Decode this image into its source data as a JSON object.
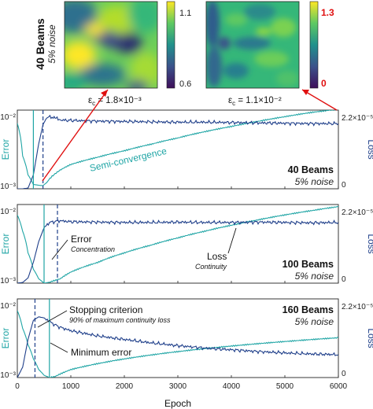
{
  "chart_data": [
    {
      "type": "line",
      "panel": "top",
      "title": "40 Beams",
      "subtitle": "5% noise",
      "ylabel_left": "Error",
      "ylabel_right": "Loss",
      "yticks_left": [
        "10⁻²",
        "10⁻³"
      ],
      "yticks_right": [
        "2.2×10⁻⁵",
        "0"
      ],
      "xlim": [
        0,
        6000
      ],
      "annotations": [
        "Semi-convergence"
      ],
      "series": [
        {
          "name": "Error",
          "color": "#1fa5a5",
          "x": [
            0,
            100,
            200,
            300,
            400,
            480,
            550,
            650,
            800,
            1000,
            1500,
            2000,
            2500,
            3000,
            3500,
            4000,
            4500,
            5000,
            5500,
            6000
          ],
          "y": [
            0.008,
            0.002,
            0.0009,
            0.0006,
            0.00058,
            0.00057,
            0.00065,
            0.00085,
            0.0011,
            0.0014,
            0.0019,
            0.0025,
            0.0033,
            0.0043,
            0.0056,
            0.007,
            0.0087,
            0.0106,
            0.0127,
            0.0145
          ]
        },
        {
          "name": "Loss",
          "color": "#1f3f8a",
          "x": [
            0,
            100,
            200,
            300,
            400,
            480,
            550,
            650,
            800,
            1000,
            1500,
            2000,
            2500,
            3000,
            3500,
            4000,
            4500,
            5000,
            5500,
            6000
          ],
          "y": [
            0.0,
            0.0,
            2e-07,
            4e-06,
            1.3e-05,
            1.85e-05,
            2.05e-05,
            2.08e-05,
            1.98e-05,
            1.97e-05,
            1.95e-05,
            1.94e-05,
            1.93e-05,
            1.92e-05,
            1.92e-05,
            1.91e-05,
            1.9e-05,
            1.89e-05,
            1.88e-05,
            1.88e-05
          ]
        }
      ],
      "vlines": [
        {
          "x": 300,
          "style": "solid"
        },
        {
          "x": 480,
          "style": "dashed"
        }
      ]
    },
    {
      "type": "line",
      "panel": "middle",
      "title": "100 Beams",
      "subtitle": "5% noise",
      "ylabel_left": "Error",
      "ylabel_right": "Loss",
      "yticks_left": [
        "10⁻²",
        "10⁻³"
      ],
      "yticks_right": [
        "2.2×10⁻⁵",
        "0"
      ],
      "xlim": [
        0,
        6000
      ],
      "annotations": [
        {
          "label": "Error",
          "sub": "Concentration"
        },
        {
          "label": "Loss",
          "sub": "Continuity"
        }
      ],
      "series": [
        {
          "name": "Error",
          "color": "#1fa5a5",
          "x": [
            0,
            100,
            200,
            300,
            400,
            500,
            600,
            800,
            1000,
            1500,
            2000,
            2500,
            3000,
            3500,
            4000,
            4500,
            5000,
            5500,
            6000
          ],
          "y": [
            0.009,
            0.0045,
            0.0018,
            0.0009,
            0.0006,
            0.0005,
            0.00052,
            0.0006,
            0.0008,
            0.0012,
            0.0018,
            0.0025,
            0.0034,
            0.0045,
            0.0058,
            0.0073,
            0.009,
            0.0108,
            0.0128
          ]
        },
        {
          "name": "Loss",
          "color": "#1f3f8a",
          "x": [
            0,
            100,
            200,
            300,
            400,
            500,
            600,
            800,
            1000,
            1500,
            2000,
            2500,
            3000,
            3500,
            4000,
            4500,
            5000,
            5500,
            6000
          ],
          "y": [
            0.0,
            2e-07,
            1.5e-06,
            6e-06,
            1.2e-05,
            1.6e-05,
            1.75e-05,
            1.8e-05,
            1.77e-05,
            1.76e-05,
            1.75e-05,
            1.75e-05,
            1.76e-05,
            1.75e-05,
            1.75e-05,
            1.76e-05,
            1.75e-05,
            1.74e-05,
            1.75e-05
          ]
        }
      ],
      "vlines": [
        {
          "x": 500,
          "style": "solid"
        },
        {
          "x": 750,
          "style": "dashed"
        }
      ]
    },
    {
      "type": "line",
      "panel": "bottom",
      "title": "160 Beams",
      "subtitle": "5% noise",
      "ylabel_left": "Error",
      "ylabel_right": "Loss",
      "yticks_left": [
        "10⁻²",
        "10⁻³"
      ],
      "yticks_right": [
        "2.2×10⁻⁵",
        "0"
      ],
      "xlabel": "Epoch",
      "xticks": [
        0,
        1000,
        2000,
        3000,
        4000,
        5000,
        6000
      ],
      "xlim": [
        0,
        6000
      ],
      "annotations": [
        {
          "label": "Stopping criterion",
          "sub": "90% of maximum continuity loss"
        },
        {
          "label": "Minimum error"
        }
      ],
      "series": [
        {
          "name": "Error",
          "color": "#1fa5a5",
          "x": [
            0,
            100,
            200,
            300,
            400,
            500,
            600,
            700,
            800,
            1000,
            1500,
            2000,
            2500,
            3000,
            3500,
            4000,
            4500,
            5000,
            5500,
            6000
          ],
          "y": [
            0.0085,
            0.004,
            0.002,
            0.0011,
            0.0007,
            0.00055,
            0.0005,
            0.00052,
            0.00058,
            0.0007,
            0.0009,
            0.0011,
            0.0013,
            0.0015,
            0.0017,
            0.0019,
            0.0021,
            0.0023,
            0.0025,
            0.0027
          ]
        },
        {
          "name": "Loss",
          "color": "#1f3f8a",
          "x": [
            0,
            100,
            200,
            300,
            400,
            500,
            600,
            700,
            800,
            1000,
            1500,
            2000,
            2500,
            3000,
            3500,
            4000,
            4500,
            5000,
            5500,
            6000
          ],
          "y": [
            0.0,
            3e-06,
            1.1e-05,
            1.65e-05,
            1.75e-05,
            1.72e-05,
            1.62e-05,
            1.52e-05,
            1.45e-05,
            1.35e-05,
            1.2e-05,
            1.1e-05,
            1e-05,
            9.2e-06,
            8.5e-06,
            8e-06,
            7.5e-06,
            7.1e-06,
            6.8e-06,
            6.6e-06
          ]
        }
      ],
      "vlines": [
        {
          "x": 330,
          "style": "dashed"
        },
        {
          "x": 600,
          "style": "solid"
        }
      ]
    },
    {
      "type": "heatmap",
      "panel": "inset-left",
      "title": "40 Beams",
      "subtitle": "5% noise",
      "epsilon_label": "ε",
      "epsilon_subscript": "c",
      "epsilon_value": "1.8×10⁻³",
      "colorbar_ticks": [
        "1.1",
        "0.6"
      ],
      "colormap": "viridis"
    },
    {
      "type": "heatmap",
      "panel": "inset-right",
      "epsilon_label": "ε",
      "epsilon_subscript": "c",
      "epsilon_value": "1.1×10⁻²",
      "colorbar_ticks": [
        "1.3",
        "0"
      ],
      "colorbar_tick_color": "#e01010",
      "colormap": "viridis"
    }
  ]
}
